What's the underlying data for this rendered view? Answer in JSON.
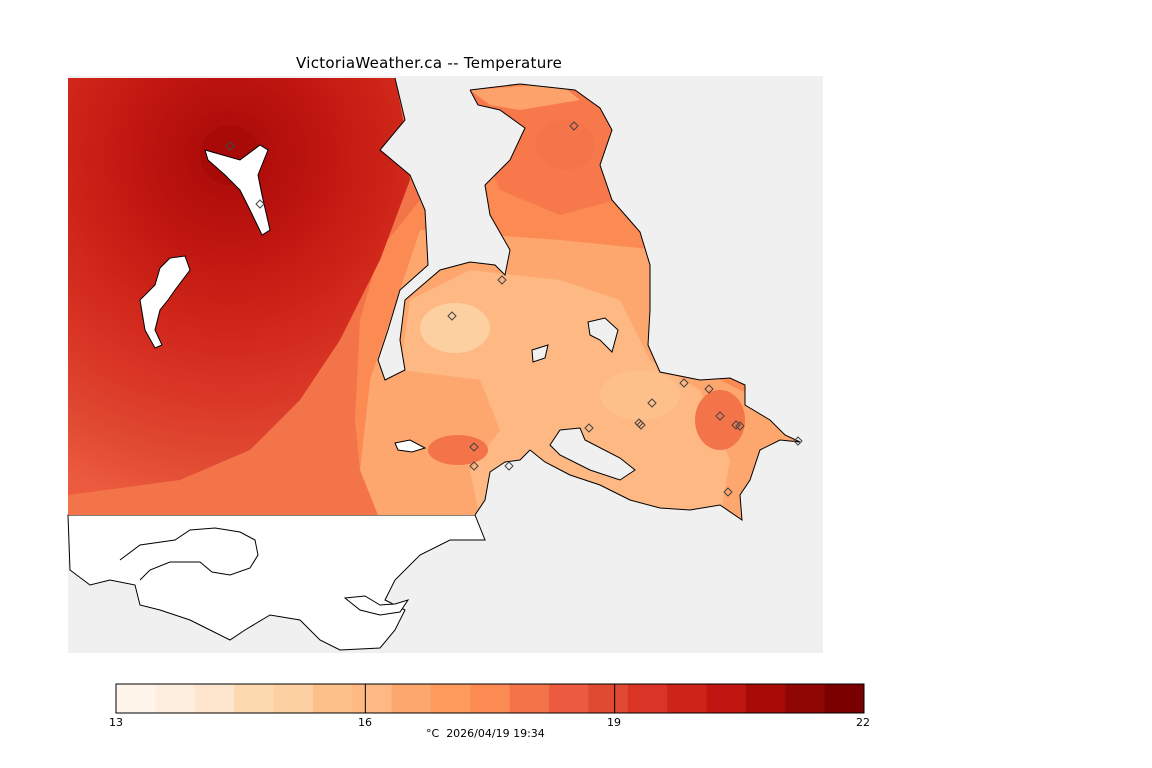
{
  "title": "VictoriaWeather.ca -- Temperature",
  "colorbar": {
    "colors": [
      "#fff5eb",
      "#feeedd",
      "#fee6ce",
      "#fdd9b0",
      "#fdd0a2",
      "#fdc08b",
      "#fdb883",
      "#fda66e",
      "#fd9a5c",
      "#fb8a53",
      "#f4744a",
      "#ec5b3f",
      "#e04a32",
      "#d93425",
      "#cd2418",
      "#be1510",
      "#a80a08",
      "#8f0605",
      "#7a0000"
    ],
    "ticks": [
      {
        "label": "13",
        "value": 13
      },
      {
        "label": "16",
        "value": 16
      },
      {
        "label": "19",
        "value": 19
      },
      {
        "label": "22",
        "value": 22
      }
    ],
    "min": 13,
    "max": 22
  },
  "footer": {
    "unit": "°C",
    "timestamp": "2026/04/19 19:34"
  },
  "colors": {
    "background": "#f0f0f0",
    "land_outside": "#ffffff",
    "station_marker": "#444444"
  },
  "station_count": 19
}
